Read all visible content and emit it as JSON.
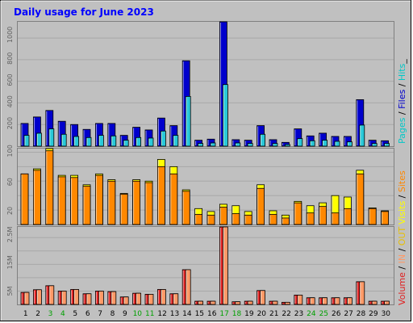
{
  "title": "Daily usage for June 2023",
  "colors": {
    "background": "#c0c0c0",
    "title": "#0000ff",
    "hits": "#00c",
    "files": "#28c8d8",
    "pages": "#00c8c8",
    "sites": "#ff8800",
    "visits": "#ffff00",
    "volume": "#e02020",
    "in": "#ff9966",
    "out": "#e8c000",
    "weekend": "#00a000"
  },
  "legends": {
    "hits_files_pages": [
      {
        "text": "Pages",
        "color": "#00c8c8"
      },
      {
        "text": " / ",
        "color": "#000000"
      },
      {
        "text": "Files",
        "color": "#0000cc"
      },
      {
        "text": " / ",
        "color": "#000000"
      },
      {
        "text": "Hits",
        "color": "#00c8c8"
      },
      {
        "text": "_",
        "color": "#000000"
      }
    ],
    "visits_sites": [
      {
        "text": "Visits",
        "color": "#ffff00"
      },
      {
        "text": " / ",
        "color": "#000000"
      },
      {
        "text": "Sites",
        "color": "#ff8800"
      }
    ],
    "volume": [
      {
        "text": "Volume",
        "color": "#e02020"
      },
      {
        "text": " / ",
        "color": "#000000"
      },
      {
        "text": "IN",
        "color": "#ff9966"
      },
      {
        "text": " / ",
        "color": "#000000"
      },
      {
        "text": "OUT",
        "color": "#e8c000"
      }
    ]
  },
  "chart_data": [
    {
      "type": "bar",
      "title": "Daily usage for June 2023",
      "categories": [
        "1",
        "2",
        "3",
        "4",
        "5",
        "6",
        "7",
        "8",
        "9",
        "10",
        "11",
        "12",
        "13",
        "14",
        "15",
        "16",
        "17",
        "18",
        "19",
        "20",
        "21",
        "22",
        "23",
        "24",
        "25",
        "26",
        "27",
        "28",
        "29",
        "30"
      ],
      "weekend_days": [
        "3",
        "4",
        "10",
        "11",
        "17",
        "18",
        "24",
        "25"
      ],
      "ylim": [
        0,
        1150
      ],
      "yticks": [
        "200",
        "400",
        "600",
        "800",
        "1000"
      ],
      "series": [
        {
          "name": "Hits",
          "values": [
            210,
            270,
            330,
            230,
            200,
            155,
            210,
            210,
            100,
            175,
            150,
            260,
            190,
            790,
            55,
            65,
            1150,
            60,
            55,
            190,
            60,
            35,
            160,
            95,
            120,
            90,
            90,
            430,
            55,
            50
          ]
        },
        {
          "name": "Files",
          "values": [
            100,
            120,
            160,
            110,
            90,
            80,
            100,
            95,
            55,
            80,
            75,
            140,
            100,
            460,
            25,
            30,
            570,
            30,
            25,
            110,
            25,
            15,
            70,
            50,
            55,
            45,
            40,
            195,
            25,
            25
          ]
        },
        {
          "name": "Pages",
          "values": [
            100,
            120,
            160,
            110,
            90,
            80,
            100,
            95,
            55,
            80,
            75,
            140,
            100,
            460,
            25,
            30,
            570,
            30,
            25,
            110,
            25,
            15,
            70,
            50,
            55,
            45,
            40,
            195,
            25,
            25
          ]
        }
      ]
    },
    {
      "type": "bar",
      "categories": [
        "1",
        "2",
        "3",
        "4",
        "5",
        "6",
        "7",
        "8",
        "9",
        "10",
        "11",
        "12",
        "13",
        "14",
        "15",
        "16",
        "17",
        "18",
        "19",
        "20",
        "21",
        "22",
        "23",
        "24",
        "25",
        "26",
        "27",
        "28",
        "29",
        "30"
      ],
      "ylim": [
        0,
        105
      ],
      "yticks": [
        "20",
        "60",
        "100"
      ],
      "series": [
        {
          "name": "Visits",
          "values": [
            70,
            77,
            105,
            68,
            68,
            55,
            70,
            62,
            43,
            62,
            60,
            90,
            80,
            48,
            22,
            18,
            28,
            26,
            18,
            55,
            19,
            13,
            32,
            26,
            30,
            40,
            38,
            75,
            23,
            19
          ]
        },
        {
          "name": "Sites",
          "values": [
            70,
            75,
            102,
            66,
            65,
            53,
            68,
            60,
            42,
            60,
            58,
            80,
            70,
            46,
            14,
            13,
            24,
            15,
            13,
            50,
            14,
            9,
            30,
            16,
            25,
            16,
            22,
            70,
            22,
            18
          ]
        }
      ]
    },
    {
      "type": "bar",
      "categories": [
        "1",
        "2",
        "3",
        "4",
        "5",
        "6",
        "7",
        "8",
        "9",
        "10",
        "11",
        "12",
        "13",
        "14",
        "15",
        "16",
        "17",
        "18",
        "19",
        "20",
        "21",
        "22",
        "23",
        "24",
        "25",
        "26",
        "27",
        "28",
        "29",
        "30"
      ],
      "ylim": [
        0,
        2900000
      ],
      "yticks": [
        "5M",
        "15M",
        "2.5M"
      ],
      "series": [
        {
          "name": "Volume",
          "values": [
            450000,
            550000,
            700000,
            500000,
            560000,
            400000,
            500000,
            480000,
            280000,
            420000,
            380000,
            560000,
            400000,
            1300000,
            120000,
            120000,
            2900000,
            100000,
            120000,
            520000,
            120000,
            80000,
            350000,
            250000,
            250000,
            250000,
            250000,
            850000,
            120000,
            120000
          ]
        },
        {
          "name": "IN",
          "values": [
            450000,
            550000,
            700000,
            500000,
            560000,
            400000,
            500000,
            480000,
            280000,
            420000,
            380000,
            560000,
            400000,
            1300000,
            120000,
            120000,
            2900000,
            100000,
            120000,
            520000,
            120000,
            80000,
            350000,
            250000,
            250000,
            250000,
            250000,
            850000,
            120000,
            120000
          ]
        }
      ]
    }
  ]
}
